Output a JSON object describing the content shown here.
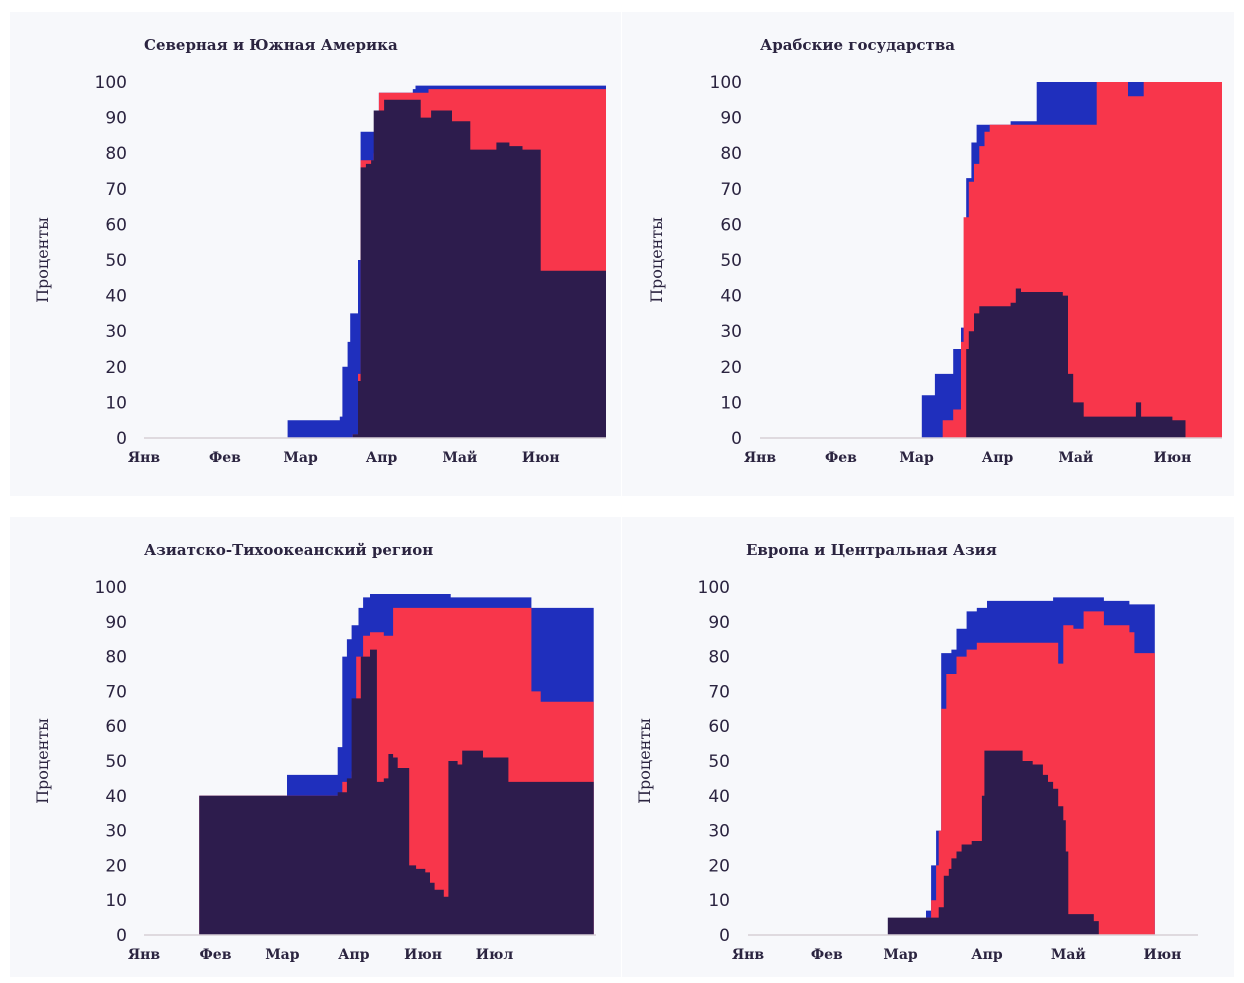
{
  "colors": {
    "dark": "#2d1c4d",
    "red": "#f8364b",
    "blue": "#1f2fbd",
    "axis": "#d7cfd6",
    "text": "#2b2440"
  },
  "chart_data": [
    {
      "type": "area",
      "title": "Северная и Южная Америка",
      "ylabel": "Проценты",
      "ylim": [
        0,
        100
      ],
      "yticks": [
        "0",
        "10",
        "20",
        "30",
        "40",
        "50",
        "60",
        "70",
        "80",
        "90",
        "100"
      ],
      "xlim": [
        0,
        177
      ],
      "xticks": [
        {
          "label": "Янв",
          "x": 0
        },
        {
          "label": "Фев",
          "x": 31
        },
        {
          "label": "Мар",
          "x": 60
        },
        {
          "label": "Апр",
          "x": 91
        },
        {
          "label": "Май",
          "x": 121
        },
        {
          "label": "Июн",
          "x": 152
        }
      ],
      "series": [
        {
          "color": "dark",
          "points": [
            [
              0,
              0
            ],
            [
              78,
              0
            ],
            [
              80,
              1
            ],
            [
              81,
              1
            ],
            [
              82,
              16
            ],
            [
              83,
              76
            ],
            [
              85,
              77
            ],
            [
              87,
              78
            ],
            [
              88,
              92
            ],
            [
              92,
              95
            ],
            [
              104,
              95
            ],
            [
              106,
              90
            ],
            [
              110,
              92
            ],
            [
              116,
              92
            ],
            [
              118,
              89
            ],
            [
              125,
              81
            ],
            [
              133,
              81
            ],
            [
              135,
              83
            ],
            [
              140,
              82
            ],
            [
              145,
              81
            ],
            [
              150,
              81
            ],
            [
              152,
              47
            ],
            [
              177,
              47
            ]
          ]
        },
        {
          "color": "red",
          "points": [
            [
              0,
              0
            ],
            [
              78,
              0
            ],
            [
              80,
              1
            ],
            [
              81,
              1
            ],
            [
              82,
              18
            ],
            [
              83,
              78
            ],
            [
              88,
              80
            ],
            [
              89,
              90
            ],
            [
              90,
              97
            ],
            [
              106,
              97
            ],
            [
              109,
              98
            ],
            [
              177,
              98
            ]
          ]
        },
        {
          "color": "blue",
          "points": [
            [
              0,
              0
            ],
            [
              54,
              0
            ],
            [
              55,
              5
            ],
            [
              72,
              5
            ],
            [
              75,
              6
            ],
            [
              76,
              20
            ],
            [
              78,
              27
            ],
            [
              79,
              35
            ],
            [
              82,
              50
            ],
            [
              83,
              86
            ],
            [
              88,
              86
            ],
            [
              89,
              90
            ],
            [
              90,
              97
            ],
            [
              103,
              98
            ],
            [
              104,
              99
            ],
            [
              177,
              99
            ]
          ]
        }
      ]
    },
    {
      "type": "area",
      "title": "Арабские государства",
      "ylabel": "Проценты",
      "ylim": [
        0,
        100
      ],
      "yticks": [
        "0",
        "10",
        "20",
        "30",
        "40",
        "50",
        "60",
        "70",
        "80",
        "90",
        "100"
      ],
      "xlim": [
        0,
        177
      ],
      "xticks": [
        {
          "label": "Янв",
          "x": 0
        },
        {
          "label": "Фев",
          "x": 31
        },
        {
          "label": "Мар",
          "x": 60
        },
        {
          "label": "Апр",
          "x": 91
        },
        {
          "label": "Май",
          "x": 121
        },
        {
          "label": "Июн",
          "x": 158
        }
      ],
      "series": [
        {
          "color": "dark",
          "points": [
            [
              0,
              0
            ],
            [
              78,
              0
            ],
            [
              79,
              25
            ],
            [
              80,
              30
            ],
            [
              82,
              35
            ],
            [
              84,
              37
            ],
            [
              96,
              38
            ],
            [
              98,
              42
            ],
            [
              100,
              41
            ],
            [
              116,
              40
            ],
            [
              118,
              18
            ],
            [
              120,
              10
            ],
            [
              124,
              6
            ],
            [
              141,
              6
            ],
            [
              144,
              10
            ],
            [
              146,
              6
            ],
            [
              158,
              5
            ],
            [
              163,
              0
            ],
            [
              177,
              0
            ]
          ]
        },
        {
          "color": "red",
          "points": [
            [
              0,
              0
            ],
            [
              68,
              0
            ],
            [
              70,
              5
            ],
            [
              74,
              8
            ],
            [
              77,
              27
            ],
            [
              78,
              62
            ],
            [
              80,
              72
            ],
            [
              82,
              77
            ],
            [
              84,
              82
            ],
            [
              86,
              86
            ],
            [
              88,
              88
            ],
            [
              128,
              88
            ],
            [
              129,
              100
            ],
            [
              140,
              100
            ],
            [
              141,
              96
            ],
            [
              146,
              96
            ],
            [
              147,
              100
            ],
            [
              177,
              100
            ]
          ]
        },
        {
          "color": "blue",
          "points": [
            [
              0,
              0
            ],
            [
              61,
              0
            ],
            [
              62,
              12
            ],
            [
              66,
              12
            ],
            [
              67,
              18
            ],
            [
              72,
              18
            ],
            [
              74,
              25
            ],
            [
              77,
              31
            ],
            [
              79,
              73
            ],
            [
              81,
              83
            ],
            [
              83,
              88
            ],
            [
              94,
              88
            ],
            [
              96,
              89
            ],
            [
              105,
              89
            ],
            [
              106,
              100
            ],
            [
              177,
              100
            ]
          ]
        }
      ]
    },
    {
      "type": "area",
      "title": "Азиатско-Тихоокеанский регион",
      "ylabel": "Проценты",
      "ylim": [
        0,
        100
      ],
      "yticks": [
        "0",
        "10",
        "20",
        "30",
        "40",
        "50",
        "60",
        "70",
        "80",
        "90",
        "100"
      ],
      "xlim": [
        0,
        196
      ],
      "xticks": [
        {
          "label": "Янв",
          "x": 0
        },
        {
          "label": "Фев",
          "x": 31
        },
        {
          "label": "Мар",
          "x": 60
        },
        {
          "label": "Апр",
          "x": 91
        },
        {
          "label": "Июн",
          "x": 121
        },
        {
          "label": "Июл",
          "x": 152
        }
      ],
      "series": [
        {
          "color": "dark",
          "points": [
            [
              0,
              0
            ],
            [
              23,
              0
            ],
            [
              24,
              40
            ],
            [
              80,
              40
            ],
            [
              84,
              41
            ],
            [
              88,
              45
            ],
            [
              90,
              68
            ],
            [
              94,
              80
            ],
            [
              98,
              82
            ],
            [
              100,
              82
            ],
            [
              101,
              44
            ],
            [
              104,
              45
            ],
            [
              106,
              52
            ],
            [
              108,
              51
            ],
            [
              110,
              48
            ],
            [
              113,
              48
            ],
            [
              115,
              20
            ],
            [
              118,
              19
            ],
            [
              122,
              18
            ],
            [
              124,
              15
            ],
            [
              126,
              13
            ],
            [
              130,
              11
            ],
            [
              131,
              11
            ],
            [
              132,
              50
            ],
            [
              136,
              49
            ],
            [
              138,
              53
            ],
            [
              145,
              53
            ],
            [
              147,
              51
            ],
            [
              156,
              51
            ],
            [
              158,
              44
            ],
            [
              195,
              44
            ]
          ]
        },
        {
          "color": "red",
          "points": [
            [
              0,
              0
            ],
            [
              23,
              0
            ],
            [
              24,
              40
            ],
            [
              85,
              40
            ],
            [
              86,
              44
            ],
            [
              90,
              47
            ],
            [
              92,
              80
            ],
            [
              95,
              86
            ],
            [
              98,
              87
            ],
            [
              104,
              86
            ],
            [
              108,
              94
            ],
            [
              162,
              94
            ],
            [
              168,
              70
            ],
            [
              172,
              67
            ],
            [
              195,
              67
            ]
          ]
        },
        {
          "color": "blue",
          "points": [
            [
              0,
              0
            ],
            [
              23,
              0
            ],
            [
              24,
              40
            ],
            [
              60,
              40
            ],
            [
              62,
              46
            ],
            [
              66,
              46
            ],
            [
              83,
              46
            ],
            [
              84,
              54
            ],
            [
              86,
              80
            ],
            [
              88,
              85
            ],
            [
              90,
              89
            ],
            [
              93,
              94
            ],
            [
              95,
              97
            ],
            [
              98,
              98
            ],
            [
              123,
              98
            ],
            [
              133,
              97
            ],
            [
              168,
              94
            ],
            [
              195,
              94
            ]
          ]
        }
      ]
    },
    {
      "type": "area",
      "title": "Европа и Центральная Азия",
      "ylabel": "Проценты",
      "ylim": [
        0,
        100
      ],
      "yticks": [
        "0",
        "10",
        "20",
        "30",
        "40",
        "50",
        "60",
        "70",
        "80",
        "90",
        "100"
      ],
      "xlim": [
        0,
        177
      ],
      "xticks": [
        {
          "label": "Янв",
          "x": 0
        },
        {
          "label": "Фев",
          "x": 31
        },
        {
          "label": "Мар",
          "x": 60
        },
        {
          "label": "Апр",
          "x": 94
        },
        {
          "label": "Май",
          "x": 126
        },
        {
          "label": "Июн",
          "x": 163
        }
      ],
      "series": [
        {
          "color": "dark",
          "points": [
            [
              0,
              0
            ],
            [
              54,
              0
            ],
            [
              55,
              5
            ],
            [
              73,
              5
            ],
            [
              75,
              8
            ],
            [
              77,
              17
            ],
            [
              79,
              19
            ],
            [
              80,
              22
            ],
            [
              82,
              24
            ],
            [
              84,
              26
            ],
            [
              88,
              27
            ],
            [
              92,
              40
            ],
            [
              93,
              53
            ],
            [
              104,
              53
            ],
            [
              108,
              50
            ],
            [
              112,
              49
            ],
            [
              116,
              46
            ],
            [
              118,
              44
            ],
            [
              120,
              42
            ],
            [
              122,
              37
            ],
            [
              124,
              33
            ],
            [
              125,
              24
            ],
            [
              126,
              6
            ],
            [
              132,
              6
            ],
            [
              136,
              4
            ],
            [
              138,
              0
            ],
            [
              177,
              0
            ]
          ]
        },
        {
          "color": "red",
          "points": [
            [
              0,
              0
            ],
            [
              68,
              0
            ],
            [
              70,
              5
            ],
            [
              72,
              10
            ],
            [
              74,
              20
            ],
            [
              75,
              30
            ],
            [
              76,
              65
            ],
            [
              78,
              75
            ],
            [
              82,
              80
            ],
            [
              86,
              82
            ],
            [
              90,
              84
            ],
            [
              120,
              84
            ],
            [
              122,
              78
            ],
            [
              124,
              89
            ],
            [
              128,
              88
            ],
            [
              132,
              93
            ],
            [
              138,
              93
            ],
            [
              140,
              89
            ],
            [
              150,
              87
            ],
            [
              152,
              81
            ],
            [
              160,
              81
            ]
          ]
        },
        {
          "color": "blue",
          "points": [
            [
              0,
              0
            ],
            [
              66,
              0
            ],
            [
              70,
              7
            ],
            [
              72,
              20
            ],
            [
              74,
              30
            ],
            [
              76,
              81
            ],
            [
              80,
              82
            ],
            [
              82,
              88
            ],
            [
              86,
              93
            ],
            [
              90,
              94
            ],
            [
              94,
              96
            ],
            [
              100,
              96
            ],
            [
              116,
              96
            ],
            [
              120,
              97
            ],
            [
              135,
              97
            ],
            [
              140,
              96
            ],
            [
              150,
              95
            ],
            [
              152,
              95
            ],
            [
              160,
              95
            ]
          ]
        }
      ]
    }
  ]
}
